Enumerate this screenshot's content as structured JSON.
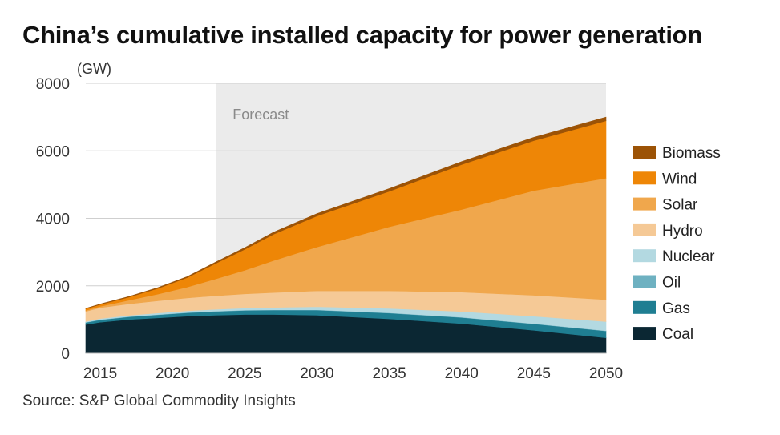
{
  "title": "China’s cumulative installed capacity for power generation",
  "source": "Source: S&P Global Commodity Insights",
  "chart_data": {
    "type": "area",
    "stacked": true,
    "title": "China’s cumulative installed capacity for power generation",
    "ylabel": "(GW)",
    "xlabel": "",
    "xlim": [
      2014,
      2050
    ],
    "ylim": [
      0,
      8000
    ],
    "yticks": [
      0,
      2000,
      4000,
      6000,
      8000
    ],
    "xticks": [
      2015,
      2020,
      2025,
      2030,
      2035,
      2040,
      2045,
      2050
    ],
    "grid": true,
    "legend_position": "right",
    "forecast_start": 2023,
    "annotations": [
      "Forecast"
    ],
    "x": [
      2014,
      2015,
      2017,
      2019,
      2021,
      2023,
      2025,
      2027,
      2030,
      2035,
      2040,
      2045,
      2050
    ],
    "series": [
      {
        "name": "Coal",
        "color": "#0b2733",
        "values": [
          850,
          920,
          1000,
          1050,
          1100,
          1130,
          1150,
          1150,
          1130,
          1020,
          880,
          680,
          460
        ]
      },
      {
        "name": "Gas",
        "color": "#1f7e92",
        "values": [
          60,
          70,
          80,
          90,
          100,
          110,
          120,
          130,
          150,
          170,
          180,
          190,
          200
        ]
      },
      {
        "name": "Oil",
        "color": "#6eb1c1",
        "values": [
          10,
          10,
          10,
          10,
          10,
          10,
          10,
          10,
          10,
          10,
          10,
          10,
          10
        ]
      },
      {
        "name": "Nuclear",
        "color": "#b3d9e1",
        "values": [
          20,
          30,
          35,
          45,
          50,
          55,
          60,
          70,
          90,
          130,
          170,
          220,
          270
        ]
      },
      {
        "name": "Hydro",
        "color": "#f5c996",
        "values": [
          300,
          320,
          340,
          360,
          380,
          400,
          420,
          440,
          470,
          520,
          570,
          620,
          650
        ]
      },
      {
        "name": "Solar",
        "color": "#f0a74c",
        "values": [
          30,
          40,
          110,
          200,
          320,
          500,
          700,
          950,
          1300,
          1900,
          2450,
          3100,
          3600
        ]
      },
      {
        "name": "Wind",
        "color": "#ee8606",
        "values": [
          50,
          55,
          90,
          170,
          280,
          460,
          620,
          780,
          920,
          1050,
          1330,
          1480,
          1700
        ]
      },
      {
        "name": "Biomass",
        "color": "#9c5306",
        "values": [
          10,
          15,
          20,
          25,
          30,
          40,
          50,
          60,
          70,
          80,
          90,
          100,
          110
        ]
      }
    ]
  }
}
